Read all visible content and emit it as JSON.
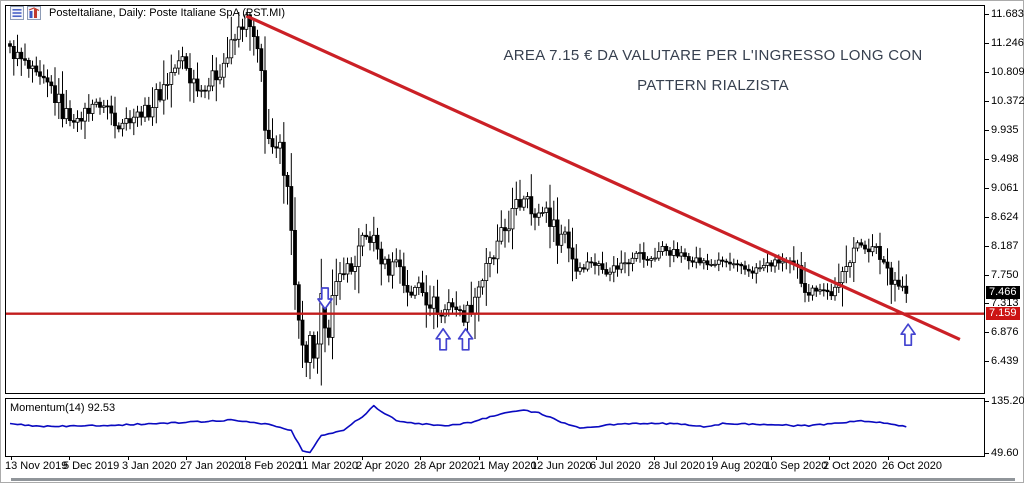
{
  "window": {
    "title": "PosteItaliane, Daily: Poste Italiane SpA (PST.MI)"
  },
  "toolbar_icons": [
    {
      "name": "quotes-table-icon"
    },
    {
      "name": "chart-type-icon"
    }
  ],
  "annotation": {
    "line1": "AREA 7.15 € DA VALUTARE PER L'INGRESSO LONG CON",
    "line2": "PATTERN RIALZISTA",
    "color": "#37404f"
  },
  "indicator_label": "Momentum(14) 92.53",
  "price_axis": {
    "labels": [
      "11.683",
      "11.246",
      "10.809",
      "10.372",
      "9.935",
      "9.498",
      "9.061",
      "8.624",
      "8.187",
      "7.750",
      "7.313",
      "6.876",
      "6.439"
    ],
    "current_price_badge": {
      "text": "7.466",
      "bg": "#000000",
      "fg": "#ffffff"
    },
    "level_badge": {
      "text": "7.159",
      "bg": "#cc1414",
      "fg": "#ffffff"
    }
  },
  "momentum_axis": {
    "top_label": "135.20",
    "bottom_label": "49.60"
  },
  "date_axis": {
    "labels": [
      "13 Nov 2019",
      "5 Dec 2019",
      "3 Jan 2020",
      "27 Jan 2020",
      "18 Feb 2020",
      "11 Mar 2020",
      "2 Apr 2020",
      "28 Apr 2020",
      "21 May 2020",
      "12 Jun 2020",
      "6 Jul 2020",
      "28 Jul 2020",
      "19 Aug 2020",
      "10 Sep 2020",
      "2 Oct 2020",
      "26 Oct 2020"
    ]
  },
  "chart_data": {
    "type": "candlestick",
    "symbol": "PST.MI",
    "name": "Poste Italiane SpA",
    "timeframe": "Daily",
    "bars": 240,
    "price_axis_range": [
      5.96,
      11.81
    ],
    "momentum_range": [
      44.6,
      138.6
    ],
    "last_price": 7.466,
    "momentum_last": 92.53,
    "price_close_anchors": [
      [
        0,
        11.15
      ],
      [
        3,
        10.98
      ],
      [
        7,
        10.72
      ],
      [
        11,
        10.56
      ],
      [
        14,
        10.22
      ],
      [
        18,
        10.06
      ],
      [
        22,
        10.34
      ],
      [
        26,
        10.28
      ],
      [
        29,
        10.02
      ],
      [
        33,
        10.15
      ],
      [
        37,
        10.24
      ],
      [
        41,
        10.6
      ],
      [
        44,
        10.88
      ],
      [
        46,
        11.02
      ],
      [
        48,
        10.74
      ],
      [
        51,
        10.54
      ],
      [
        54,
        10.7
      ],
      [
        58,
        11.05
      ],
      [
        61,
        11.42
      ],
      [
        63,
        11.62
      ],
      [
        65,
        11.28
      ],
      [
        67,
        10.78
      ],
      [
        68,
        10.05
      ],
      [
        70,
        9.55
      ],
      [
        72,
        9.62
      ],
      [
        74,
        9.2
      ],
      [
        75,
        8.35
      ],
      [
        77,
        7.0
      ],
      [
        78,
        6.55
      ],
      [
        79,
        6.3
      ],
      [
        80,
        6.85
      ],
      [
        81,
        6.35
      ],
      [
        82,
        6.6
      ],
      [
        83,
        7.3
      ],
      [
        85,
        6.9
      ],
      [
        86,
        7.35
      ],
      [
        87,
        7.5
      ],
      [
        89,
        7.9
      ],
      [
        91,
        7.8
      ],
      [
        93,
        8.1
      ],
      [
        95,
        8.3
      ],
      [
        97,
        8.25
      ],
      [
        99,
        8.0
      ],
      [
        101,
        7.78
      ],
      [
        103,
        8.05
      ],
      [
        105,
        7.62
      ],
      [
        107,
        7.45
      ],
      [
        109,
        7.62
      ],
      [
        111,
        7.42
      ],
      [
        113,
        7.3
      ],
      [
        115,
        7.12
      ],
      [
        117,
        7.32
      ],
      [
        119,
        7.25
      ],
      [
        121,
        7.08
      ],
      [
        123,
        7.3
      ],
      [
        125,
        7.6
      ],
      [
        127,
        7.8
      ],
      [
        129,
        8.0
      ],
      [
        131,
        8.3
      ],
      [
        133,
        8.55
      ],
      [
        135,
        8.75
      ],
      [
        138,
        9.0
      ],
      [
        140,
        8.6
      ],
      [
        143,
        8.75
      ],
      [
        146,
        8.3
      ],
      [
        148,
        8.4
      ],
      [
        151,
        7.85
      ],
      [
        155,
        7.95
      ],
      [
        159,
        7.8
      ],
      [
        163,
        7.9
      ],
      [
        167,
        8.1
      ],
      [
        170,
        7.95
      ],
      [
        174,
        8.15
      ],
      [
        178,
        8.05
      ],
      [
        182,
        8.0
      ],
      [
        186,
        7.9
      ],
      [
        190,
        7.95
      ],
      [
        194,
        7.85
      ],
      [
        198,
        7.8
      ],
      [
        202,
        7.9
      ],
      [
        206,
        7.95
      ],
      [
        210,
        7.8
      ],
      [
        213,
        7.5
      ],
      [
        216,
        7.55
      ],
      [
        219,
        7.45
      ],
      [
        221,
        7.5
      ],
      [
        223,
        8.0
      ],
      [
        225,
        8.15
      ],
      [
        227,
        8.2
      ],
      [
        229,
        8.15
      ],
      [
        231,
        8.1
      ],
      [
        233,
        7.95
      ],
      [
        235,
        7.75
      ],
      [
        237,
        7.62
      ],
      [
        239,
        7.47
      ]
    ],
    "momentum_anchors": [
      [
        0,
        97
      ],
      [
        11,
        93
      ],
      [
        30,
        96
      ],
      [
        47,
        100
      ],
      [
        59,
        104
      ],
      [
        69,
        97
      ],
      [
        75,
        86
      ],
      [
        78,
        53
      ],
      [
        80,
        51
      ],
      [
        83,
        78
      ],
      [
        89,
        88
      ],
      [
        94,
        110
      ],
      [
        97,
        127
      ],
      [
        100,
        115
      ],
      [
        103,
        103
      ],
      [
        110,
        97
      ],
      [
        117,
        95
      ],
      [
        123,
        100
      ],
      [
        131,
        115
      ],
      [
        137,
        120
      ],
      [
        141,
        116
      ],
      [
        147,
        100
      ],
      [
        153,
        90
      ],
      [
        158,
        95
      ],
      [
        169,
        99
      ],
      [
        179,
        97
      ],
      [
        185,
        93
      ],
      [
        190,
        98
      ],
      [
        201,
        97
      ],
      [
        211,
        94
      ],
      [
        219,
        97
      ],
      [
        226,
        103
      ],
      [
        231,
        100
      ],
      [
        235,
        98
      ],
      [
        239,
        92.53
      ]
    ],
    "trendline": {
      "from_bar": 63,
      "from_price": 11.66,
      "to_bar": 253.3,
      "to_price": 6.77,
      "color": "#cb2026"
    },
    "support_line": {
      "price": 7.159,
      "color": "#c21d1d"
    },
    "arrows": [
      {
        "dir": "down",
        "bar": 84,
        "tip_price": 7.23
      },
      {
        "dir": "up",
        "bar": 115.5,
        "tip_price": 6.93
      },
      {
        "dir": "up",
        "bar": 121.5,
        "tip_price": 6.93
      },
      {
        "dir": "up",
        "bar": 239.5,
        "tip_price": 7.0
      }
    ],
    "arrow_color": "#4343cf",
    "momentum_color": "#0a0ac0",
    "candle_up_fill": "#ffffff",
    "candle_down_fill": "#000000",
    "candle_stroke": "#000000"
  }
}
